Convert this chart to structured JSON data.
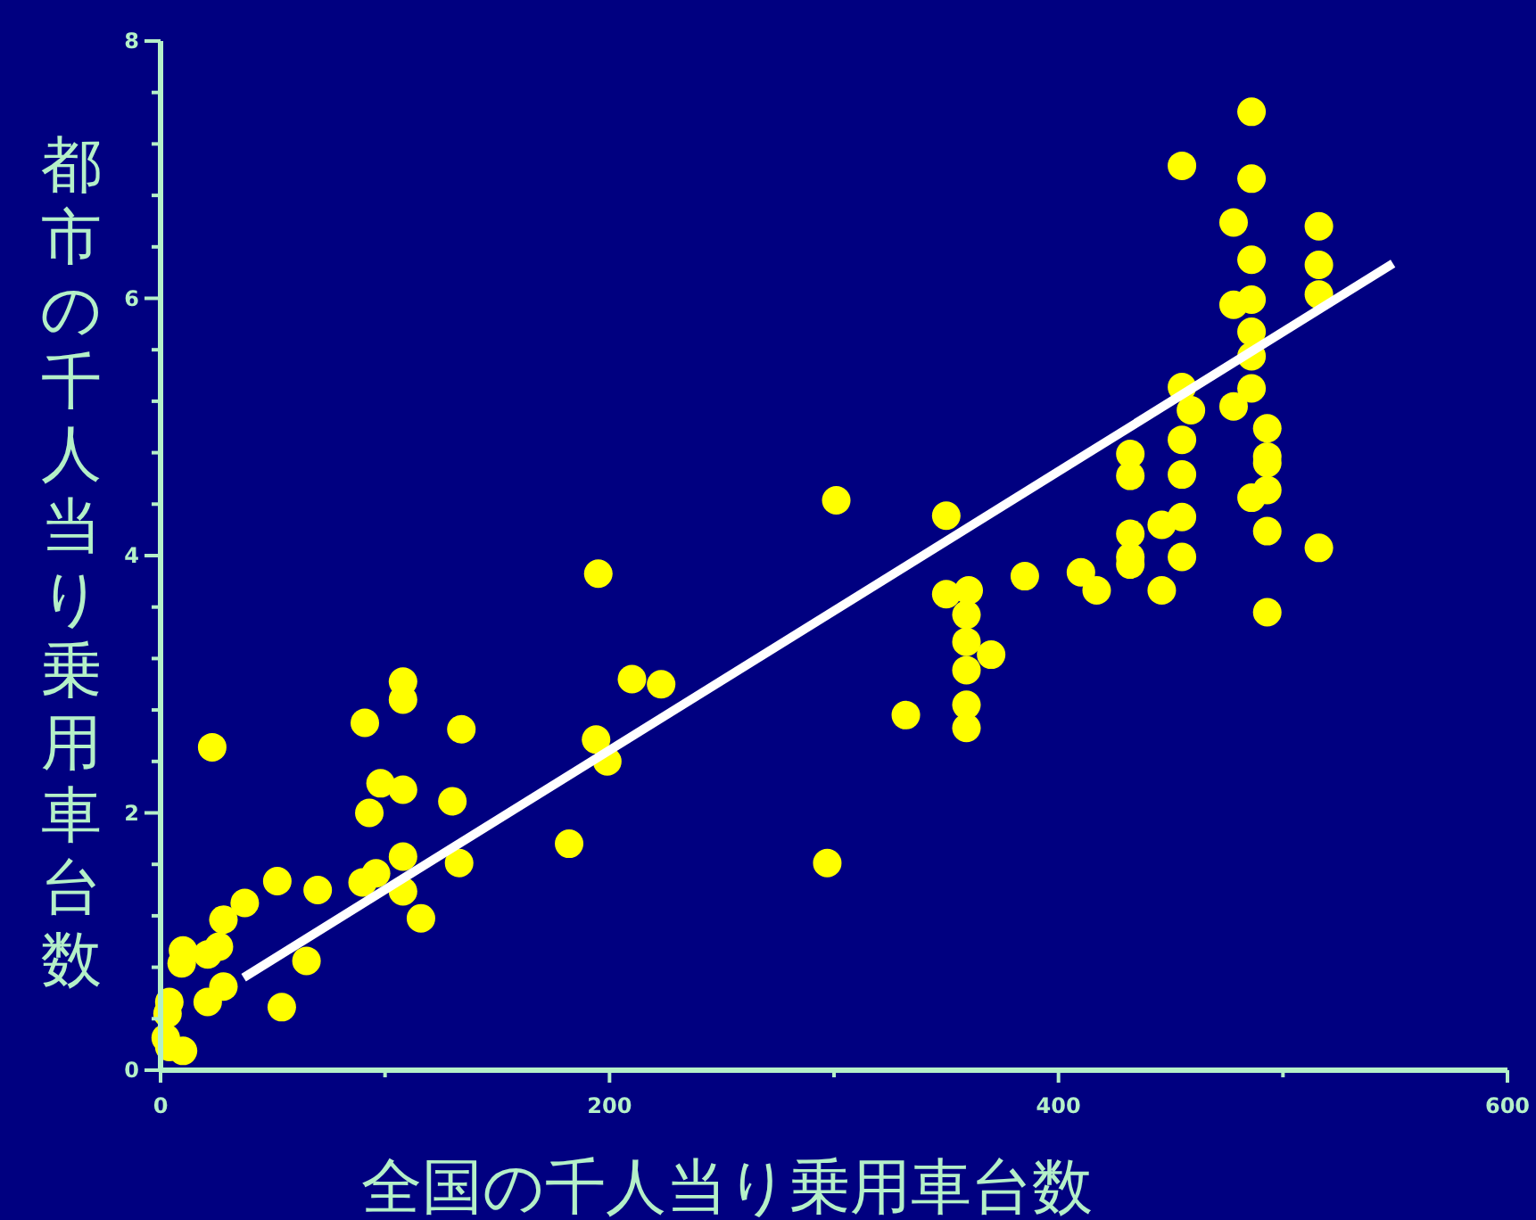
{
  "chart_data": {
    "type": "scatter",
    "xlabel": "全国の千人当り乗用車台数",
    "ylabel": "都市の千人当り乗用車台数",
    "xlim": [
      0,
      600
    ],
    "xticks": [
      0,
      {
        "value": 100,
        "label": null
      },
      200,
      {
        "value": 300,
        "label": null
      },
      400,
      {
        "value": 500,
        "label": null
      },
      600
    ],
    "ylim": [
      0,
      8
    ],
    "yticks": [
      0,
      {
        "value": 0.4,
        "label": null
      },
      {
        "value": 0.8,
        "label": null
      },
      {
        "value": 1.2,
        "label": null
      },
      {
        "value": 1.6,
        "label": null
      },
      2,
      {
        "value": 2.4,
        "label": null
      },
      {
        "value": 2.8,
        "label": null
      },
      {
        "value": 3.2,
        "label": null
      },
      {
        "value": 3.6,
        "label": null
      },
      4,
      {
        "value": 4.4,
        "label": null
      },
      {
        "value": 4.8,
        "label": null
      },
      {
        "value": 5.2,
        "label": null
      },
      {
        "value": 5.6,
        "label": null
      },
      6,
      {
        "value": 6.4,
        "label": null
      },
      {
        "value": 6.8,
        "label": null
      },
      {
        "value": 7.2,
        "label": null
      },
      {
        "value": 7.6,
        "label": null
      },
      8
    ],
    "grid": false,
    "series": [
      {
        "marker": "circle",
        "color": "#ffff00",
        "x": [
          3.9,
          3.1,
          2.3,
          3.9,
          10,
          9.4,
          10,
          21,
          26,
          28,
          37.5,
          21,
          28,
          23,
          52,
          70,
          54,
          65,
          91,
          108,
          108,
          134,
          98,
          108,
          93,
          130,
          108,
          96,
          90,
          108,
          116,
          133,
          182,
          194,
          199,
          210,
          223,
          195,
          301,
          350,
          332,
          297,
          350,
          360,
          359,
          359,
          370,
          359,
          359,
          359,
          385,
          410,
          417,
          432,
          432,
          432,
          432,
          432,
          446,
          455,
          446,
          455,
          455,
          455,
          455,
          459,
          478,
          455,
          486,
          486,
          478,
          486,
          486,
          478,
          486,
          486,
          486,
          493,
          493,
          493,
          493,
          486,
          493,
          493,
          516,
          516,
          516,
          516
        ],
        "values": [
          0.53,
          0.44,
          0.25,
          0.18,
          0.15,
          0.83,
          0.93,
          0.9,
          0.96,
          1.17,
          1.3,
          0.53,
          0.65,
          2.51,
          1.47,
          1.4,
          0.49,
          0.85,
          2.7,
          3.02,
          2.88,
          2.65,
          2.23,
          2.18,
          2,
          2.09,
          1.66,
          1.53,
          1.46,
          1.39,
          1.18,
          1.61,
          1.76,
          2.57,
          2.4,
          3.04,
          3,
          3.86,
          4.43,
          4.31,
          2.76,
          1.61,
          3.7,
          3.73,
          3.54,
          3.33,
          3.23,
          3.11,
          2.84,
          2.66,
          3.84,
          3.87,
          3.73,
          4.79,
          4.62,
          4.17,
          3.99,
          3.93,
          4.24,
          4.3,
          3.73,
          3.99,
          4.63,
          4.9,
          5.31,
          5.13,
          5.16,
          7.03,
          7.45,
          6.93,
          6.59,
          6.3,
          5.99,
          5.95,
          5.74,
          5.55,
          5.3,
          4.99,
          4.77,
          4.72,
          4.51,
          4.45,
          4.19,
          3.56,
          6.56,
          6.26,
          6.03,
          4.06
        ]
      },
      {
        "type": "line",
        "color": "#ffffff",
        "x": [
          37,
          549
        ],
        "values": [
          0.72,
          6.27
        ]
      }
    ]
  }
}
